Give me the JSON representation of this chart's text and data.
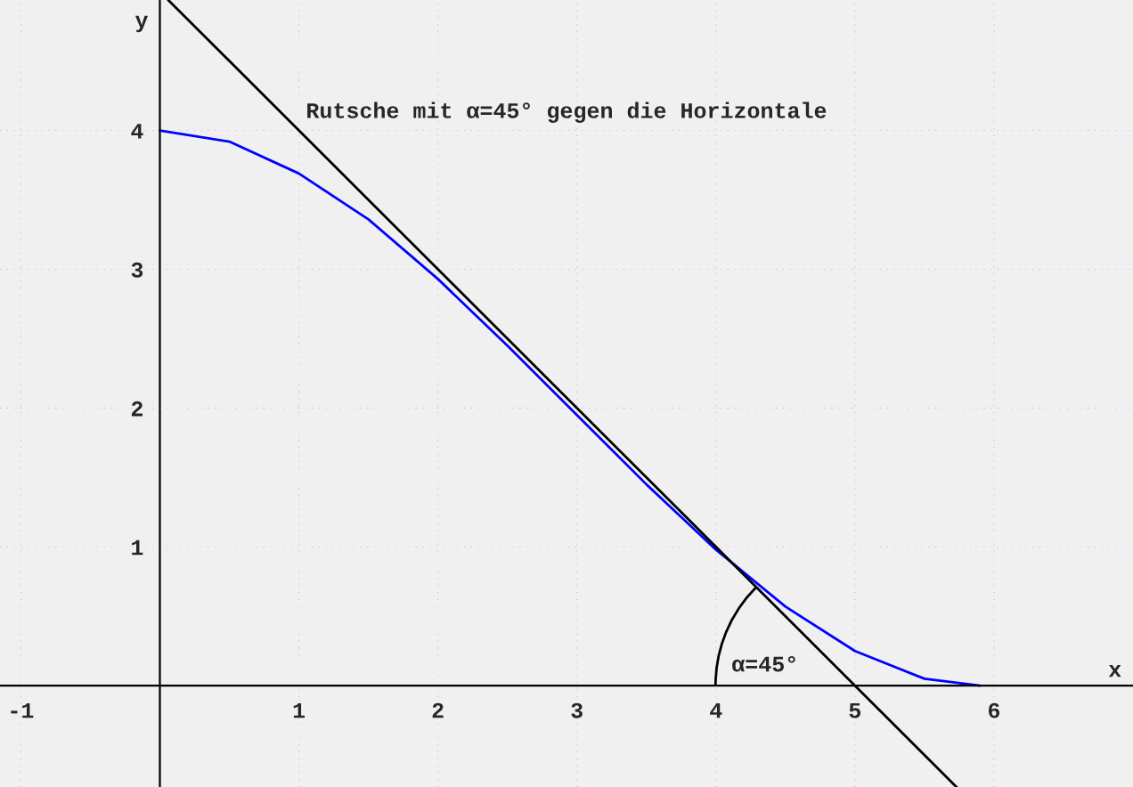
{
  "chart_data": {
    "type": "line",
    "title": "Rutsche mit α=45° gegen die Horizontale",
    "xlabel": "x",
    "ylabel": "y",
    "xlim": [
      -1.15,
      7.0
    ],
    "ylim": [
      -0.73,
      4.94
    ],
    "xticks": [
      -1,
      1,
      2,
      3,
      4,
      5,
      6
    ],
    "yticks": [
      1,
      2,
      3,
      4
    ],
    "grid": true,
    "legend": false,
    "series": [
      {
        "color": "#0000ff",
        "x": [
          0,
          0.5,
          1,
          1.5,
          2,
          2.5,
          3,
          3.5,
          4,
          4.5,
          5,
          5.5,
          5.9
        ],
        "values": [
          4,
          3.92,
          3.69,
          3.36,
          2.93,
          2.45,
          1.95,
          1.45,
          0.98,
          0.57,
          0.25,
          0.05,
          0
        ]
      },
      {
        "color": "#000000",
        "x": [
          0.06,
          5.73
        ],
        "values": [
          4.94,
          -0.73
        ]
      }
    ],
    "annotations": [
      {
        "text": "α=45°",
        "x": 4.29,
        "y": 0.71
      }
    ]
  }
}
